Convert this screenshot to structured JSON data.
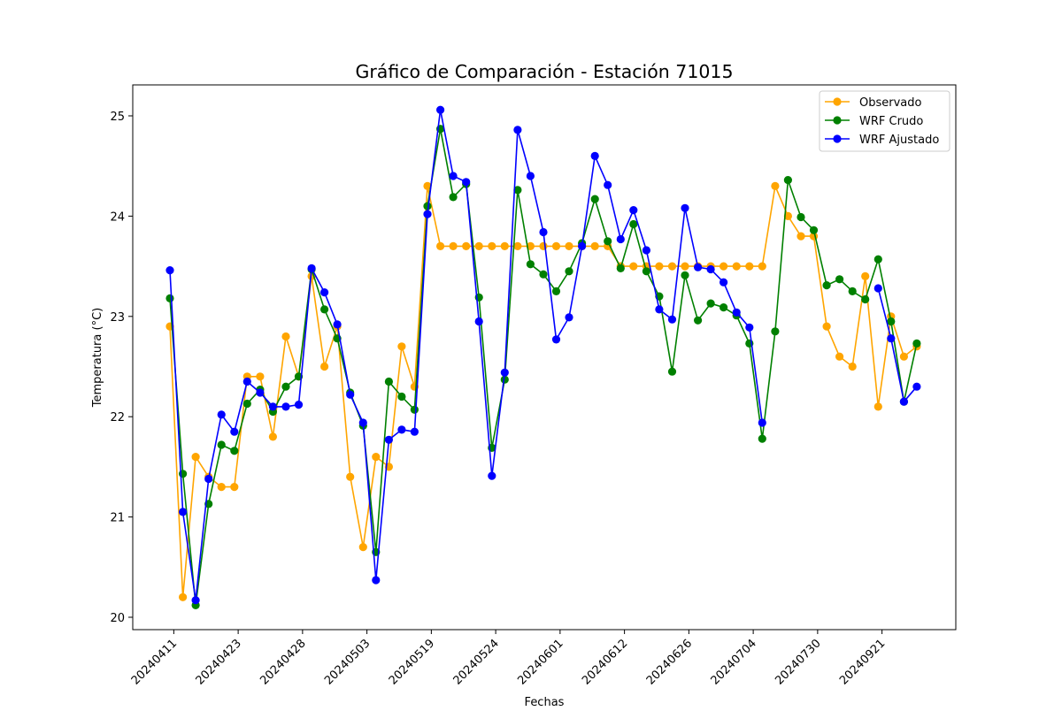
{
  "chart_data": {
    "type": "line",
    "title": "Gráfico de Comparación - Estación 71015",
    "xlabel": "Fechas",
    "ylabel": "Temperatura (°C)",
    "ylim": [
      19.85,
      25.3
    ],
    "y_ticks": [
      20,
      21,
      22,
      23,
      24,
      25
    ],
    "x_tick_labels": [
      {
        "index": 0.3,
        "label": "20240411"
      },
      {
        "index": 5.3,
        "label": "20240423"
      },
      {
        "index": 10.3,
        "label": "20240428"
      },
      {
        "index": 15.3,
        "label": "20240503"
      },
      {
        "index": 20.3,
        "label": "20240519"
      },
      {
        "index": 25.3,
        "label": "20240524"
      },
      {
        "index": 30.3,
        "label": "20240601"
      },
      {
        "index": 35.3,
        "label": "20240612"
      },
      {
        "index": 40.3,
        "label": "20240626"
      },
      {
        "index": 45.3,
        "label": "20240704"
      },
      {
        "index": 50.3,
        "label": "20240730"
      },
      {
        "index": 55.3,
        "label": "20240921"
      }
    ],
    "n_points": 59,
    "legend_position": "top-right",
    "grid": false,
    "series": [
      {
        "name": "Observado",
        "color": "#ffa500",
        "values": [
          22.9,
          20.2,
          21.6,
          21.4,
          21.3,
          21.3,
          22.4,
          22.4,
          21.8,
          22.8,
          22.4,
          23.4,
          22.5,
          22.9,
          21.4,
          20.7,
          21.6,
          21.5,
          22.7,
          22.3,
          24.3,
          23.7,
          23.7,
          23.7,
          23.7,
          23.7,
          23.7,
          23.7,
          23.7,
          23.7,
          23.7,
          23.7,
          23.7,
          23.7,
          23.7,
          23.5,
          23.5,
          23.5,
          23.5,
          23.5,
          23.5,
          23.5,
          23.5,
          23.5,
          23.5,
          23.5,
          23.5,
          24.3,
          24.0,
          23.8,
          23.8,
          22.9,
          22.6,
          22.5,
          23.4,
          22.1,
          23.0,
          22.6,
          22.7
        ]
      },
      {
        "name": "WRF Crudo",
        "color": "#008000",
        "values": [
          23.18,
          21.43,
          20.12,
          21.13,
          21.72,
          21.66,
          22.13,
          22.27,
          22.05,
          22.3,
          22.4,
          23.47,
          23.07,
          22.78,
          22.24,
          21.91,
          20.65,
          22.35,
          22.2,
          22.07,
          24.1,
          24.87,
          24.19,
          24.32,
          23.19,
          21.69,
          22.37,
          24.26,
          23.52,
          23.42,
          23.25,
          23.45,
          23.73,
          24.17,
          23.75,
          23.48,
          23.92,
          23.45,
          23.2,
          22.45,
          23.41,
          22.96,
          23.13,
          23.09,
          23.01,
          22.73,
          21.78,
          22.85,
          24.36,
          23.99,
          23.86,
          23.31,
          23.37,
          23.25,
          23.17,
          23.57,
          22.95,
          22.15,
          22.73
        ]
      },
      {
        "name": "WRF Ajustado",
        "color": "#0000ff",
        "values": [
          23.46,
          21.05,
          20.17,
          21.38,
          22.02,
          21.85,
          22.35,
          22.24,
          22.1,
          22.1,
          22.12,
          23.48,
          23.24,
          22.92,
          22.22,
          21.94,
          20.37,
          21.77,
          21.87,
          21.85,
          24.02,
          25.06,
          24.4,
          24.34,
          22.95,
          21.41,
          22.44,
          24.86,
          24.4,
          23.84,
          22.77,
          22.99,
          23.7,
          24.6,
          24.31,
          23.77,
          24.06,
          23.66,
          23.07,
          22.97,
          24.08,
          23.49,
          23.47,
          23.34,
          23.04,
          22.89,
          21.94,
          null,
          null,
          null,
          null,
          null,
          null,
          null,
          null,
          23.28,
          22.78,
          22.15,
          22.3
        ]
      }
    ]
  }
}
